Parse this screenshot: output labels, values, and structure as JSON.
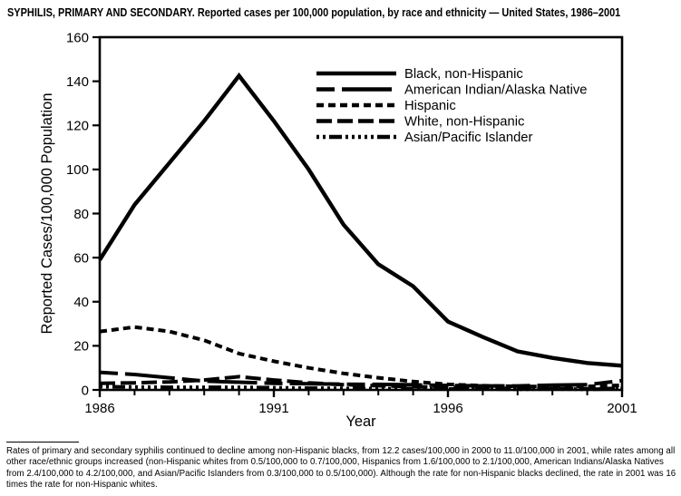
{
  "title": "SYPHILIS, PRIMARY AND SECONDARY. Reported cases per 100,000 population, by race and ethnicity — United States, 1986–2001",
  "chart_data": {
    "type": "line",
    "title": "SYPHILIS, PRIMARY AND SECONDARY. Reported cases per 100,000 population, by race and ethnicity — United States, 1986–2001",
    "xlabel": "Year",
    "ylabel": "Reported Cases/100,000 Population",
    "x": [
      1986,
      1987,
      1988,
      1989,
      1990,
      1991,
      1992,
      1993,
      1994,
      1995,
      1996,
      1997,
      1998,
      1999,
      2000,
      2001
    ],
    "x_tick_labels": [
      1986,
      1991,
      1996,
      2001
    ],
    "ylim": [
      0,
      160
    ],
    "y_ticks": [
      0,
      20,
      40,
      60,
      80,
      100,
      120,
      140,
      160
    ],
    "grid": false,
    "line_color": "#000000",
    "legend_position": "top-right-inside",
    "series": [
      {
        "name": "Black, non-Hispanic",
        "dash": "solid",
        "values": [
          59,
          84,
          103,
          122,
          142.5,
          122,
          100,
          75,
          57,
          47,
          31,
          24,
          17.5,
          14.5,
          12.2,
          11.0
        ]
      },
      {
        "name": "American Indian/Alaska Native",
        "dash": "long-dash-solid",
        "values": [
          8,
          7,
          5.5,
          4,
          3.5,
          3,
          2.8,
          2.6,
          2.5,
          2.3,
          2.0,
          1.8,
          1.8,
          2.2,
          2.4,
          4.2
        ]
      },
      {
        "name": "Hispanic",
        "dash": "short-dash",
        "values": [
          26.5,
          28.5,
          26.5,
          22.5,
          16.5,
          13,
          10,
          7.5,
          5.5,
          3.8,
          2.5,
          1.9,
          1.6,
          1.5,
          1.6,
          2.1
        ]
      },
      {
        "name": "White, non-Hispanic",
        "dash": "long-dash",
        "values": [
          3,
          3.2,
          3.6,
          4.5,
          6,
          4.5,
          3.2,
          2.4,
          1.9,
          1.5,
          1.1,
          0.8,
          0.6,
          0.5,
          0.5,
          0.7
        ]
      },
      {
        "name": "Asian/Pacific Islander",
        "dash": "dot-dot-dash",
        "values": [
          1.5,
          1.3,
          1.2,
          1.2,
          1.2,
          1.0,
          0.8,
          0.7,
          0.6,
          0.5,
          0.4,
          0.4,
          0.3,
          0.4,
          0.3,
          0.5
        ]
      }
    ]
  },
  "footnote": "Rates of primary and secondary syphilis continued to decline among non-Hispanic blacks, from 12.2 cases/100,000 in 2000 to 11.0/100,000 in 2001, while rates among all other race/ethnic groups increased (non-Hispanic whites from 0.5/100,000 to 0.7/100,000, Hispanics from 1.6/100,000 to 2.1/100,000, American Indians/Alaska Natives from 2.4/100,000 to 4.2/100,000, and Asian/Pacific Islanders from 0.3/100,000 to 0.5/100,000). Although the rate for non-Hispanic blacks declined, the rate in 2001 was 16 times the rate for non-Hispanic whites."
}
